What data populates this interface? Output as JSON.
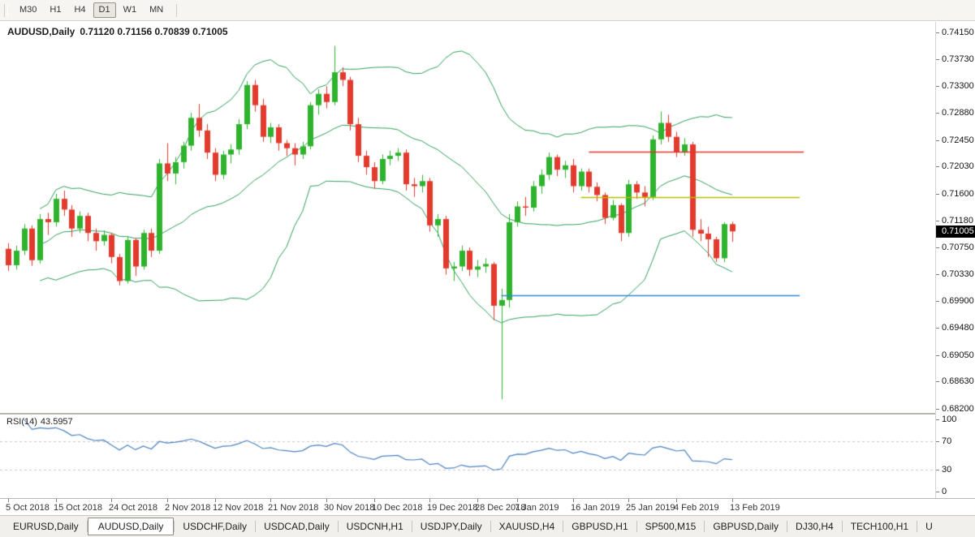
{
  "toolbar": {
    "timeframes": [
      {
        "label": "M30",
        "active": false
      },
      {
        "label": "H1",
        "active": false
      },
      {
        "label": "H4",
        "active": false
      },
      {
        "label": "D1",
        "active": true
      },
      {
        "label": "W1",
        "active": false
      },
      {
        "label": "MN",
        "active": false
      }
    ]
  },
  "chart": {
    "title_symbol": "AUDUSD,Daily",
    "title_ohlc": "0.71120 0.71156 0.70839 0.71005",
    "current_price": "0.71005",
    "price_axis_labels": [
      "0.74150",
      "0.73730",
      "0.73300",
      "0.72880",
      "0.72450",
      "0.72030",
      "0.71600",
      "0.71180",
      "0.70750",
      "0.70330",
      "0.69900",
      "0.69480",
      "0.69050",
      "0.68630",
      "0.68200"
    ],
    "colors": {
      "candle_up": "#2fb32f",
      "candle_down": "#e23b2e",
      "bollinger": "#2e9e57",
      "rsi_line": "#4a80c0",
      "rsi_level": "#c9c9c9",
      "badge_bg": "#000000"
    }
  },
  "chart_data": {
    "type": "candlestick",
    "symbol": "AUDUSD",
    "timeframe": "Daily",
    "ylim": [
      0.682,
      0.7415
    ],
    "ohlc_current": {
      "open": 0.7112,
      "high": 0.71156,
      "low": 0.70839,
      "close": 0.71005
    },
    "overlays": {
      "bollinger_bands": {
        "period": 20,
        "deviation": 2
      }
    },
    "hlines": [
      {
        "price": 0.7226,
        "color": "#e0372b",
        "from_index": 73,
        "to_index": 100
      },
      {
        "price": 0.7155,
        "color": "#b5bd00",
        "from_index": 72,
        "to_index": 99.5
      },
      {
        "price": 0.7,
        "color": "#2e86d5",
        "from_index": 62,
        "to_index": 99.5
      }
    ],
    "date_ticks": [
      {
        "label": "5 Oct 2018",
        "index": 0
      },
      {
        "label": "15 Oct 2018",
        "index": 6
      },
      {
        "label": "24 Oct 2018",
        "index": 13
      },
      {
        "label": "2 Nov 2018",
        "index": 20
      },
      {
        "label": "12 Nov 2018",
        "index": 26
      },
      {
        "label": "21 Nov 2018",
        "index": 33
      },
      {
        "label": "30 Nov 2018",
        "index": 40
      },
      {
        "label": "10 Dec 2018",
        "index": 46
      },
      {
        "label": "19 Dec 2018",
        "index": 53
      },
      {
        "label": "28 Dec 2018",
        "index": 59
      },
      {
        "label": "7 Jan 2019",
        "index": 64
      },
      {
        "label": "16 Jan 2019",
        "index": 71
      },
      {
        "label": "25 Jan 2019",
        "index": 78
      },
      {
        "label": "4 Feb 2019",
        "index": 84
      },
      {
        "label": "13 Feb 2019",
        "index": 91
      }
    ],
    "candles": [
      [
        0.7073,
        0.7082,
        0.7038,
        0.7047
      ],
      [
        0.7047,
        0.7078,
        0.704,
        0.707
      ],
      [
        0.707,
        0.7112,
        0.7063,
        0.7105
      ],
      [
        0.7105,
        0.711,
        0.7046,
        0.7055
      ],
      [
        0.7055,
        0.7128,
        0.705,
        0.712
      ],
      [
        0.712,
        0.713,
        0.7095,
        0.7115
      ],
      [
        0.7115,
        0.716,
        0.7108,
        0.7152
      ],
      [
        0.7152,
        0.7165,
        0.7125,
        0.7135
      ],
      [
        0.7135,
        0.7142,
        0.7092,
        0.7105
      ],
      [
        0.7105,
        0.7132,
        0.7098,
        0.7125
      ],
      [
        0.7125,
        0.713,
        0.7085,
        0.7098
      ],
      [
        0.7098,
        0.7105,
        0.707,
        0.7085
      ],
      [
        0.7085,
        0.7102,
        0.7078,
        0.7095
      ],
      [
        0.7095,
        0.7098,
        0.705,
        0.706
      ],
      [
        0.706,
        0.7065,
        0.7015,
        0.7022
      ],
      [
        0.7022,
        0.7092,
        0.7018,
        0.7087
      ],
      [
        0.7087,
        0.709,
        0.703,
        0.7045
      ],
      [
        0.7045,
        0.7103,
        0.704,
        0.7098
      ],
      [
        0.7098,
        0.7105,
        0.706,
        0.707
      ],
      [
        0.707,
        0.7215,
        0.7065,
        0.7208
      ],
      [
        0.7208,
        0.724,
        0.718,
        0.7192
      ],
      [
        0.7192,
        0.7218,
        0.7175,
        0.721
      ],
      [
        0.721,
        0.7242,
        0.72,
        0.7236
      ],
      [
        0.7236,
        0.7288,
        0.7228,
        0.728
      ],
      [
        0.728,
        0.7302,
        0.725,
        0.726
      ],
      [
        0.726,
        0.727,
        0.7215,
        0.7225
      ],
      [
        0.7225,
        0.7232,
        0.718,
        0.719
      ],
      [
        0.719,
        0.7228,
        0.7183,
        0.7222
      ],
      [
        0.7222,
        0.7238,
        0.7208,
        0.723
      ],
      [
        0.723,
        0.7278,
        0.7222,
        0.727
      ],
      [
        0.727,
        0.7338,
        0.7262,
        0.7332
      ],
      [
        0.7332,
        0.734,
        0.729,
        0.73
      ],
      [
        0.73,
        0.731,
        0.7242,
        0.725
      ],
      [
        0.725,
        0.7272,
        0.724,
        0.7265
      ],
      [
        0.7265,
        0.727,
        0.7228,
        0.724
      ],
      [
        0.724,
        0.7245,
        0.722,
        0.7232
      ],
      [
        0.7232,
        0.724,
        0.7205,
        0.7222
      ],
      [
        0.7222,
        0.7242,
        0.7215,
        0.7235
      ],
      [
        0.7235,
        0.7305,
        0.723,
        0.73
      ],
      [
        0.73,
        0.7325,
        0.7285,
        0.7318
      ],
      [
        0.7318,
        0.733,
        0.7295,
        0.7305
      ],
      [
        0.7305,
        0.7394,
        0.73,
        0.7352
      ],
      [
        0.7352,
        0.736,
        0.733,
        0.734
      ],
      [
        0.734,
        0.7345,
        0.726,
        0.727
      ],
      [
        0.727,
        0.728,
        0.721,
        0.722
      ],
      [
        0.722,
        0.7228,
        0.719,
        0.7202
      ],
      [
        0.7202,
        0.721,
        0.7168,
        0.718
      ],
      [
        0.718,
        0.7222,
        0.7175,
        0.7215
      ],
      [
        0.7215,
        0.7228,
        0.7205,
        0.722
      ],
      [
        0.722,
        0.7232,
        0.7212,
        0.7225
      ],
      [
        0.7225,
        0.723,
        0.7165,
        0.7175
      ],
      [
        0.7175,
        0.7185,
        0.7155,
        0.7172
      ],
      [
        0.7172,
        0.719,
        0.7162,
        0.718
      ],
      [
        0.718,
        0.7185,
        0.71,
        0.711
      ],
      [
        0.711,
        0.7128,
        0.7092,
        0.712
      ],
      [
        0.712,
        0.7125,
        0.7032,
        0.7042
      ],
      [
        0.7042,
        0.7052,
        0.7022,
        0.7045
      ],
      [
        0.7045,
        0.7078,
        0.7038,
        0.707
      ],
      [
        0.707,
        0.7075,
        0.703,
        0.704
      ],
      [
        0.704,
        0.7055,
        0.7028,
        0.7045
      ],
      [
        0.7045,
        0.7058,
        0.7035,
        0.7049
      ],
      [
        0.7049,
        0.7052,
        0.696,
        0.6983
      ],
      [
        0.6983,
        0.701,
        0.6835,
        0.6992
      ],
      [
        0.6992,
        0.7128,
        0.698,
        0.7115
      ],
      [
        0.7115,
        0.7148,
        0.7108,
        0.714
      ],
      [
        0.714,
        0.7155,
        0.7125,
        0.7138
      ],
      [
        0.7138,
        0.718,
        0.7132,
        0.7172
      ],
      [
        0.7172,
        0.7198,
        0.716,
        0.719
      ],
      [
        0.719,
        0.7225,
        0.7182,
        0.7218
      ],
      [
        0.7218,
        0.7222,
        0.7188,
        0.7198
      ],
      [
        0.7198,
        0.7212,
        0.7185,
        0.7205
      ],
      [
        0.7205,
        0.7215,
        0.7162,
        0.7172
      ],
      [
        0.7172,
        0.72,
        0.7165,
        0.7195
      ],
      [
        0.7195,
        0.72,
        0.7162,
        0.7171
      ],
      [
        0.7171,
        0.7178,
        0.7148,
        0.7158
      ],
      [
        0.7158,
        0.7162,
        0.7112,
        0.7122
      ],
      [
        0.7122,
        0.715,
        0.7118,
        0.7142
      ],
      [
        0.7142,
        0.7145,
        0.7085,
        0.7098
      ],
      [
        0.7098,
        0.7182,
        0.7092,
        0.7175
      ],
      [
        0.7175,
        0.718,
        0.7152,
        0.7162
      ],
      [
        0.7162,
        0.7172,
        0.714,
        0.7155
      ],
      [
        0.7155,
        0.7252,
        0.715,
        0.7246
      ],
      [
        0.7246,
        0.729,
        0.7238,
        0.7272
      ],
      [
        0.7272,
        0.7285,
        0.7242,
        0.725
      ],
      [
        0.725,
        0.7258,
        0.7218,
        0.7226
      ],
      [
        0.7226,
        0.7248,
        0.722,
        0.7238
      ],
      [
        0.7238,
        0.7242,
        0.7092,
        0.7103
      ],
      [
        0.7103,
        0.712,
        0.7085,
        0.7097
      ],
      [
        0.7097,
        0.7108,
        0.706,
        0.7088
      ],
      [
        0.7088,
        0.7092,
        0.7052,
        0.7058
      ],
      [
        0.7058,
        0.7115,
        0.7052,
        0.7112
      ],
      [
        0.7112,
        0.71156,
        0.70839,
        0.71005
      ]
    ]
  },
  "rsi": {
    "label": "RSI(14)",
    "value": "43.5957",
    "period": 14,
    "upper_level": 70,
    "lower_level": 30,
    "axis_labels": [
      "100",
      "70",
      "30",
      "0"
    ]
  },
  "tabs": [
    {
      "label": "EURUSD,Daily",
      "active": false
    },
    {
      "label": "AUDUSD,Daily",
      "active": true
    },
    {
      "label": "USDCHF,Daily",
      "active": false
    },
    {
      "label": "USDCAD,Daily",
      "active": false
    },
    {
      "label": "USDCNH,H1",
      "active": false
    },
    {
      "label": "USDJPY,Daily",
      "active": false
    },
    {
      "label": "XAUUSD,H4",
      "active": false
    },
    {
      "label": "GBPUSD,H1",
      "active": false
    },
    {
      "label": "SP500,M15",
      "active": false
    },
    {
      "label": "GBPUSD,Daily",
      "active": false
    },
    {
      "label": "DJ30,H4",
      "active": false
    },
    {
      "label": "TECH100,H1",
      "active": false
    },
    {
      "label": "U",
      "active": false
    }
  ]
}
